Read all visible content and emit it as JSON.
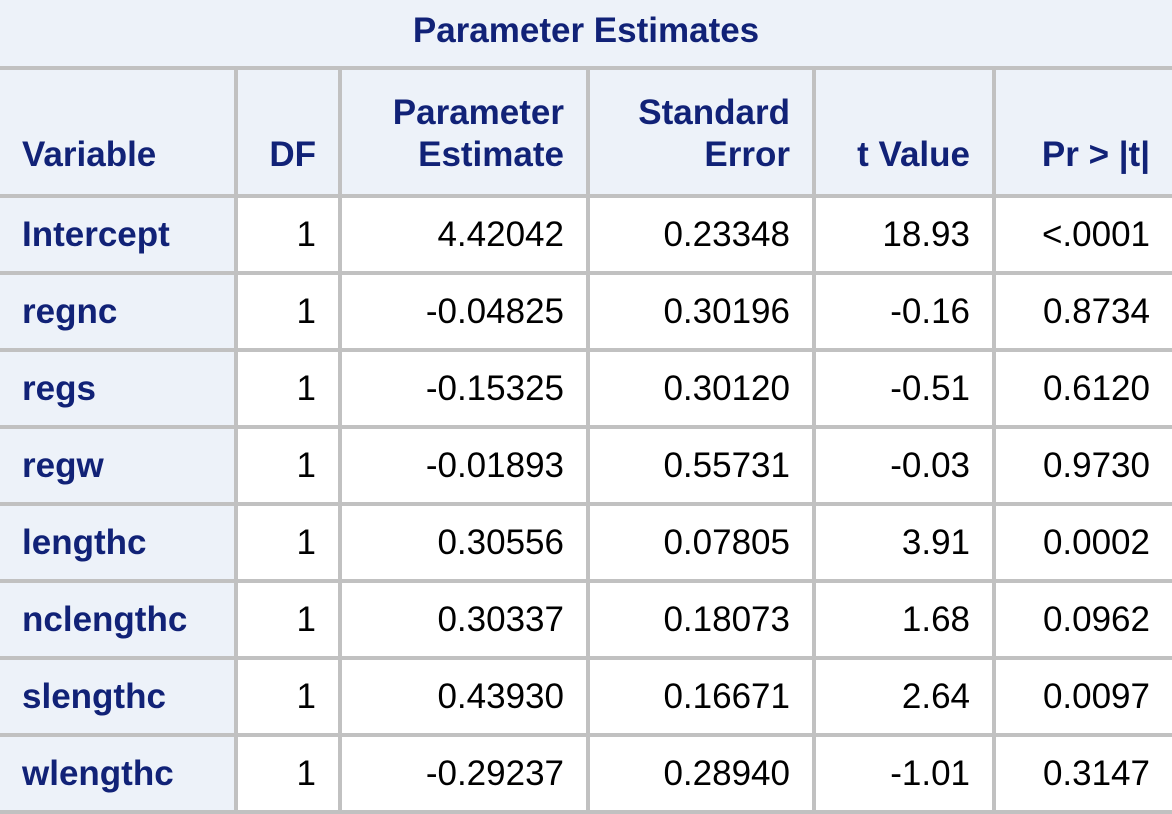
{
  "title": "Parameter Estimates",
  "columns": [
    {
      "line1": "",
      "line2": "Variable"
    },
    {
      "line1": "",
      "line2": "DF"
    },
    {
      "line1": "Parameter",
      "line2": "Estimate"
    },
    {
      "line1": "Standard",
      "line2": "Error"
    },
    {
      "line1": "",
      "line2": "t Value"
    },
    {
      "line1": "",
      "line2": "Pr > |t|"
    }
  ],
  "rows": [
    {
      "variable": "Intercept",
      "df": "1",
      "estimate": "4.42042",
      "stderr": "0.23348",
      "tvalue": "18.93",
      "p": "<.0001"
    },
    {
      "variable": "regnc",
      "df": "1",
      "estimate": "-0.04825",
      "stderr": "0.30196",
      "tvalue": "-0.16",
      "p": "0.8734"
    },
    {
      "variable": "regs",
      "df": "1",
      "estimate": "-0.15325",
      "stderr": "0.30120",
      "tvalue": "-0.51",
      "p": "0.6120"
    },
    {
      "variable": "regw",
      "df": "1",
      "estimate": "-0.01893",
      "stderr": "0.55731",
      "tvalue": "-0.03",
      "p": "0.9730"
    },
    {
      "variable": "lengthc",
      "df": "1",
      "estimate": "0.30556",
      "stderr": "0.07805",
      "tvalue": "3.91",
      "p": "0.0002"
    },
    {
      "variable": "nclengthc",
      "df": "1",
      "estimate": "0.30337",
      "stderr": "0.18073",
      "tvalue": "1.68",
      "p": "0.0962"
    },
    {
      "variable": "slengthc",
      "df": "1",
      "estimate": "0.43930",
      "stderr": "0.16671",
      "tvalue": "2.64",
      "p": "0.0097"
    },
    {
      "variable": "wlengthc",
      "df": "1",
      "estimate": "-0.29237",
      "stderr": "0.28940",
      "tvalue": "-1.01",
      "p": "0.3147"
    }
  ],
  "colors": {
    "header_text": "#112277",
    "header_bg": "#edf2f9",
    "grid": "#c1c1c1"
  }
}
